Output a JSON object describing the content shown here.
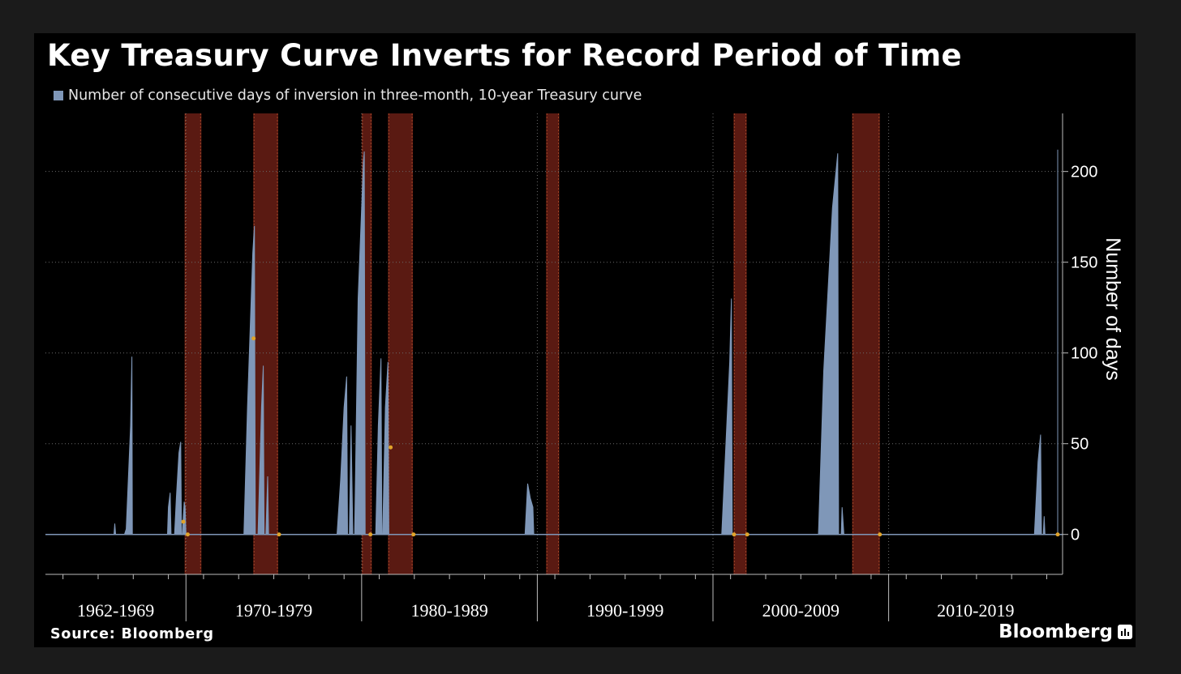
{
  "title": "Key Treasury Curve Inverts for Record Period of Time",
  "legend": {
    "label": "Number of consecutive days of inversion in three-month, 10-year Treasury curve"
  },
  "source": "Source: Bloomberg",
  "brand": {
    "label": "Bloomberg",
    "icon": "bloomberg-chart-icon"
  },
  "colors": {
    "background": "#000000",
    "frame": "#1b1b1b",
    "series": "#7f97b8",
    "recession": "#5a1a12",
    "recession_edge": "#c0562e",
    "marker": "#e0a32a",
    "text": "#ffffff"
  },
  "chart_data": {
    "type": "area",
    "title": "Key Treasury Curve Inverts for Record Period of Time",
    "xlabel": "",
    "ylabel": "Number of days",
    "ylim": [
      -22,
      232
    ],
    "yticks": [
      0,
      50,
      100,
      150,
      200
    ],
    "xlim": [
      1962.0,
      2019.9
    ],
    "grid": true,
    "legend_position": "top-left",
    "period_labels": [
      {
        "label": "1962-1969",
        "start": 1962.0,
        "end": 1970.0
      },
      {
        "label": "1970-1979",
        "start": 1970.0,
        "end": 1980.0
      },
      {
        "label": "1980-1989",
        "start": 1980.0,
        "end": 1990.0
      },
      {
        "label": "1990-1999",
        "start": 1990.0,
        "end": 2000.0
      },
      {
        "label": "2000-2009",
        "start": 2000.0,
        "end": 2010.0
      },
      {
        "label": "2010-2019",
        "start": 2010.0,
        "end": 2020.0
      }
    ],
    "recessions": [
      {
        "start": 1969.92,
        "end": 1970.88
      },
      {
        "start": 1973.83,
        "end": 1975.25
      },
      {
        "start": 1980.0,
        "end": 1980.58
      },
      {
        "start": 1981.5,
        "end": 1982.92
      },
      {
        "start": 1990.5,
        "end": 1991.25
      },
      {
        "start": 2001.17,
        "end": 2001.92
      },
      {
        "start": 2007.92,
        "end": 2009.5
      },
      {
        "start": 2019.9,
        "end": 2020.3
      }
    ],
    "series": [
      {
        "name": "Number of consecutive days of inversion in three-month, 10-year Treasury curve",
        "points": [
          [
            1962.0,
            0
          ],
          [
            1965.9,
            0
          ],
          [
            1965.95,
            6
          ],
          [
            1966.0,
            0
          ],
          [
            1966.5,
            0
          ],
          [
            1966.6,
            3
          ],
          [
            1966.85,
            60
          ],
          [
            1966.92,
            98
          ],
          [
            1966.95,
            0
          ],
          [
            1968.95,
            0
          ],
          [
            1969.0,
            15
          ],
          [
            1969.1,
            23
          ],
          [
            1969.15,
            0
          ],
          [
            1969.35,
            0
          ],
          [
            1969.45,
            20
          ],
          [
            1969.6,
            45
          ],
          [
            1969.7,
            51
          ],
          [
            1969.75,
            0
          ],
          [
            1969.8,
            0
          ],
          [
            1969.85,
            10
          ],
          [
            1969.9,
            18
          ],
          [
            1969.95,
            15
          ],
          [
            1970.0,
            0
          ],
          [
            1973.3,
            0
          ],
          [
            1973.5,
            70
          ],
          [
            1973.8,
            155
          ],
          [
            1973.9,
            170
          ],
          [
            1973.95,
            0
          ],
          [
            1974.1,
            0
          ],
          [
            1974.3,
            70
          ],
          [
            1974.4,
            93
          ],
          [
            1974.45,
            0
          ],
          [
            1974.55,
            0
          ],
          [
            1974.65,
            32
          ],
          [
            1974.7,
            0
          ],
          [
            1978.6,
            0
          ],
          [
            1978.8,
            30
          ],
          [
            1979.0,
            70
          ],
          [
            1979.15,
            87
          ],
          [
            1979.2,
            0
          ],
          [
            1979.3,
            0
          ],
          [
            1979.4,
            60
          ],
          [
            1979.5,
            0
          ],
          [
            1979.6,
            0
          ],
          [
            1979.8,
            130
          ],
          [
            1980.1,
            205
          ],
          [
            1980.15,
            211
          ],
          [
            1980.2,
            0
          ],
          [
            1980.8,
            0
          ],
          [
            1980.95,
            60
          ],
          [
            1981.1,
            97
          ],
          [
            1981.15,
            0
          ],
          [
            1981.2,
            0
          ],
          [
            1981.35,
            70
          ],
          [
            1981.5,
            95
          ],
          [
            1981.55,
            0
          ],
          [
            1989.3,
            0
          ],
          [
            1989.45,
            28
          ],
          [
            1989.6,
            20
          ],
          [
            1989.75,
            15
          ],
          [
            1989.8,
            0
          ],
          [
            2000.5,
            0
          ],
          [
            2000.95,
            95
          ],
          [
            2001.05,
            130
          ],
          [
            2001.1,
            0
          ],
          [
            2006.0,
            0
          ],
          [
            2006.3,
            90
          ],
          [
            2006.8,
            180
          ],
          [
            2007.1,
            210
          ],
          [
            2007.15,
            0
          ],
          [
            2007.3,
            0
          ],
          [
            2007.35,
            15
          ],
          [
            2007.45,
            0
          ],
          [
            2018.3,
            0
          ],
          [
            2018.5,
            40
          ],
          [
            2018.65,
            55
          ],
          [
            2018.7,
            0
          ],
          [
            2018.8,
            0
          ],
          [
            2018.85,
            10
          ],
          [
            2018.9,
            0
          ],
          [
            2020.6,
            0
          ],
          [
            2020.7,
            40
          ],
          [
            2021.0,
            130
          ],
          [
            2021.3,
            200
          ],
          [
            2021.35,
            212
          ],
          [
            2021.4,
            0
          ],
          [
            2021.6,
            0
          ]
        ]
      }
    ],
    "markers": [
      {
        "x": 1969.85,
        "y": 7
      },
      {
        "x": 1970.1,
        "y": 0
      },
      {
        "x": 1973.85,
        "y": 108
      },
      {
        "x": 1975.3,
        "y": 0
      },
      {
        "x": 1980.5,
        "y": 0
      },
      {
        "x": 1981.65,
        "y": 48
      },
      {
        "x": 1982.95,
        "y": 0
      },
      {
        "x": 2001.2,
        "y": 0
      },
      {
        "x": 2001.95,
        "y": 0
      },
      {
        "x": 2009.5,
        "y": 0
      },
      {
        "x": 2019.95,
        "y": 0
      }
    ]
  }
}
